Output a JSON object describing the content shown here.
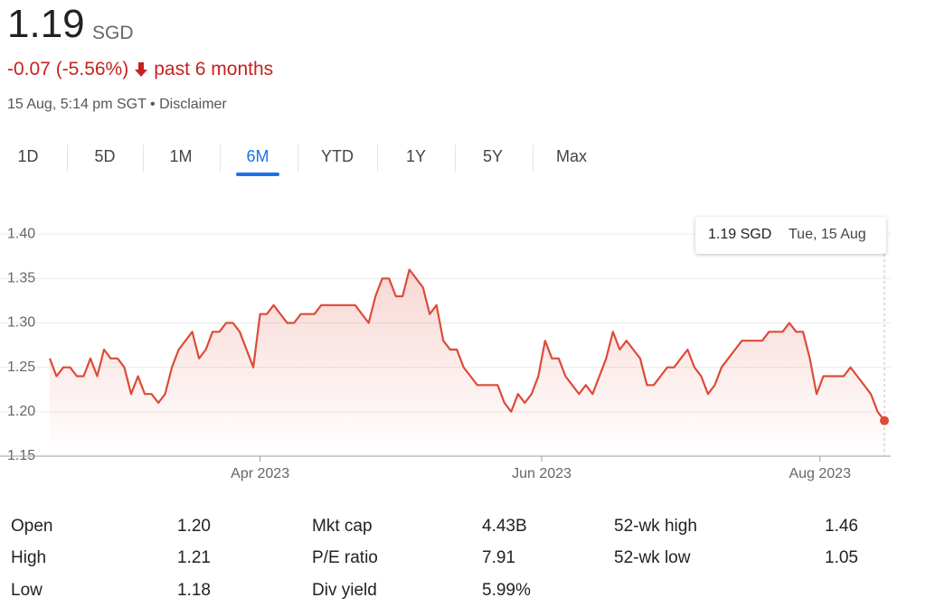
{
  "header": {
    "price": "1.19",
    "currency": "SGD",
    "change": "-0.07 (-5.56%)",
    "period": "past 6 months",
    "timestamp": "15 Aug, 5:14 pm SGT",
    "disclaimer": "Disclaimer"
  },
  "tabs": [
    "1D",
    "5D",
    "1M",
    "6M",
    "YTD",
    "1Y",
    "5Y",
    "Max"
  ],
  "active_tab": 3,
  "chart_data": {
    "type": "line",
    "color": "#dd4b39",
    "grid": true,
    "values": [
      1.26,
      1.24,
      1.25,
      1.25,
      1.24,
      1.24,
      1.26,
      1.24,
      1.27,
      1.26,
      1.26,
      1.25,
      1.22,
      1.24,
      1.22,
      1.22,
      1.21,
      1.22,
      1.25,
      1.27,
      1.28,
      1.29,
      1.26,
      1.27,
      1.29,
      1.29,
      1.3,
      1.3,
      1.29,
      1.27,
      1.25,
      1.31,
      1.31,
      1.32,
      1.31,
      1.3,
      1.3,
      1.31,
      1.31,
      1.31,
      1.32,
      1.32,
      1.32,
      1.32,
      1.32,
      1.32,
      1.31,
      1.3,
      1.33,
      1.35,
      1.35,
      1.33,
      1.33,
      1.36,
      1.35,
      1.34,
      1.31,
      1.32,
      1.28,
      1.27,
      1.27,
      1.25,
      1.24,
      1.23,
      1.23,
      1.23,
      1.23,
      1.21,
      1.2,
      1.22,
      1.21,
      1.22,
      1.24,
      1.28,
      1.26,
      1.26,
      1.24,
      1.23,
      1.22,
      1.23,
      1.22,
      1.24,
      1.26,
      1.29,
      1.27,
      1.28,
      1.27,
      1.26,
      1.23,
      1.23,
      1.24,
      1.25,
      1.25,
      1.26,
      1.27,
      1.25,
      1.24,
      1.22,
      1.23,
      1.25,
      1.26,
      1.27,
      1.28,
      1.28,
      1.28,
      1.28,
      1.29,
      1.29,
      1.29,
      1.3,
      1.29,
      1.29,
      1.26,
      1.22,
      1.24,
      1.24,
      1.24,
      1.24,
      1.25,
      1.24,
      1.23,
      1.22,
      1.2,
      1.19
    ],
    "xlim": [
      0,
      123
    ],
    "xticks": [
      {
        "value": 31,
        "label": "Apr 2023"
      },
      {
        "value": 72.5,
        "label": "Jun 2023"
      },
      {
        "value": 113.5,
        "label": "Aug 2023"
      }
    ],
    "ylim": [
      1.15,
      1.42
    ],
    "yticks": [
      {
        "value": 1.4,
        "label": "1.40"
      },
      1.35,
      {
        "value": 1.3,
        "label": "1.30"
      },
      1.25,
      {
        "value": 1.2,
        "label": "1.20"
      },
      1.15
    ],
    "tooltip": {
      "value": "1.19 SGD",
      "date": "Tue, 15 Aug"
    }
  },
  "stats": [
    [
      {
        "label": "Open",
        "value": "1.20"
      },
      {
        "label": "High",
        "value": "1.21"
      },
      {
        "label": "Low",
        "value": "1.18"
      }
    ],
    [
      {
        "label": "Mkt cap",
        "value": "4.43B"
      },
      {
        "label": "P/E ratio",
        "value": "7.91"
      },
      {
        "label": "Div yield",
        "value": "5.99%"
      }
    ],
    [
      {
        "label": "52-wk high",
        "value": "1.46"
      },
      {
        "label": "52-wk low",
        "value": "1.05"
      }
    ]
  ]
}
